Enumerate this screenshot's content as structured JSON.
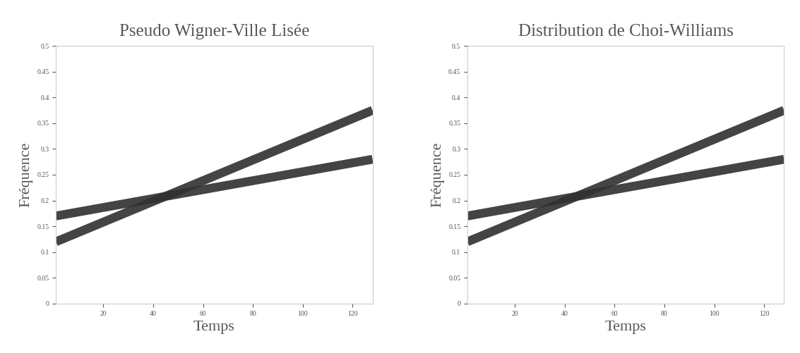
{
  "chart_data": [
    {
      "type": "line",
      "title": "Pseudo Wigner-Ville Lisée",
      "x_label": "Temps",
      "y_label": "Fréquence",
      "x": [
        1,
        128
      ],
      "xlim": [
        1,
        128
      ],
      "ylim": [
        0,
        0.5
      ],
      "xticks": [
        20,
        40,
        60,
        80,
        100,
        120
      ],
      "yticks": [
        0,
        0.05,
        0.1,
        0.15,
        0.2,
        0.25,
        0.3,
        0.35,
        0.4,
        0.45,
        0.5
      ],
      "series": [
        {
          "color": "#303030",
          "values": [
            0.12,
            0.375
          ]
        },
        {
          "color": "#303030",
          "values": [
            0.17,
            0.28
          ]
        }
      ]
    },
    {
      "type": "line",
      "title": "Distribution de Choi-Williams",
      "x_label": "Temps",
      "y_label": "Fréquence",
      "x": [
        1,
        128
      ],
      "xlim": [
        1,
        128
      ],
      "ylim": [
        0,
        0.5
      ],
      "xticks": [
        20,
        40,
        60,
        80,
        100,
        120
      ],
      "yticks": [
        0,
        0.05,
        0.1,
        0.15,
        0.2,
        0.25,
        0.3,
        0.35,
        0.4,
        0.45,
        0.5
      ],
      "series": [
        {
          "color": "#303030",
          "values": [
            0.12,
            0.375
          ]
        },
        {
          "color": "#303030",
          "values": [
            0.17,
            0.28
          ]
        }
      ]
    }
  ]
}
